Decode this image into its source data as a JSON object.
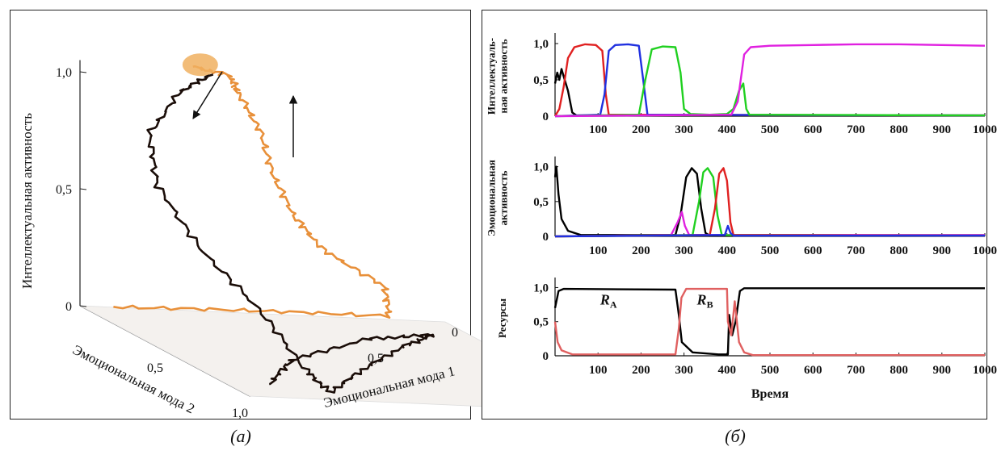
{
  "captions": {
    "a": "(а)",
    "b": "(б)"
  },
  "chart_data": [
    {
      "type": "line",
      "panel": "a",
      "projection": "3d",
      "axes": {
        "z": {
          "label": "Интеллектуальная активность",
          "ticks": [
            "0",
            "0,5",
            "1,0"
          ],
          "range": [
            0,
            1
          ]
        },
        "y": {
          "label": "Эмоциональная мода 2",
          "ticks": [
            "0,5",
            "1,0"
          ],
          "range": [
            0,
            1
          ]
        },
        "x": {
          "label": "Эмоциональная мода 1",
          "ticks": [
            "0",
            "0,5"
          ],
          "range": [
            0,
            1
          ]
        }
      },
      "series": [
        {
          "color": "#e8903a",
          "points": [
            [
              0.05,
              0.08,
              0.03
            ],
            [
              0.45,
              0.05,
              0.03
            ],
            [
              0.8,
              0.1,
              0.05
            ],
            [
              0.78,
              0.12,
              0.18
            ],
            [
              0.62,
              0.1,
              0.32
            ],
            [
              0.55,
              0.08,
              0.45
            ],
            [
              0.5,
              0.06,
              0.62
            ],
            [
              0.47,
              0.05,
              0.8
            ],
            [
              0.42,
              0.03,
              0.95
            ],
            [
              0.4,
              0.02,
              1.02
            ],
            [
              0.3,
              0.02,
              1.05
            ]
          ]
        },
        {
          "color": "#1a0d08",
          "points": [
            [
              0.35,
              0.02,
              1.02
            ],
            [
              0.25,
              0.05,
              0.95
            ],
            [
              0.12,
              0.15,
              0.8
            ],
            [
              0.05,
              0.35,
              0.65
            ],
            [
              0.05,
              0.6,
              0.48
            ],
            [
              0.12,
              0.8,
              0.3
            ],
            [
              0.18,
              0.95,
              0.1
            ],
            [
              0.22,
              1.0,
              0.03
            ],
            [
              0.45,
              0.7,
              0.03
            ],
            [
              0.7,
              0.4,
              0.03
            ],
            [
              0.85,
              0.25,
              0.03
            ],
            [
              0.65,
              0.3,
              0.02
            ],
            [
              0.3,
              0.6,
              0.02
            ],
            [
              0.1,
              0.9,
              0.02
            ]
          ]
        }
      ],
      "annotations": [
        "arrow-down",
        "arrow-up"
      ]
    },
    {
      "type": "line",
      "panel": "b-top",
      "ylabel": [
        "Интеллектуаль-",
        "ная активность"
      ],
      "xlim": [
        0,
        1000
      ],
      "ylim": [
        0,
        1.1
      ],
      "xticks": [
        "100",
        "200",
        "300",
        "400",
        "500",
        "600",
        "700",
        "800",
        "900",
        "1000"
      ],
      "yticks": [
        "0",
        "0,5",
        "1,0"
      ],
      "series": [
        {
          "color": "#000000",
          "points": [
            [
              0,
              0.45
            ],
            [
              5,
              0.6
            ],
            [
              10,
              0.5
            ],
            [
              15,
              0.65
            ],
            [
              20,
              0.55
            ],
            [
              30,
              0.35
            ],
            [
              40,
              0.05
            ],
            [
              50,
              0.01
            ],
            [
              1000,
              0.01
            ]
          ]
        },
        {
          "color": "#e02020",
          "points": [
            [
              0,
              0
            ],
            [
              10,
              0.1
            ],
            [
              20,
              0.4
            ],
            [
              30,
              0.8
            ],
            [
              45,
              0.95
            ],
            [
              70,
              0.99
            ],
            [
              95,
              0.98
            ],
            [
              110,
              0.9
            ],
            [
              118,
              0.3
            ],
            [
              125,
              0.02
            ],
            [
              1000,
              0.01
            ]
          ]
        },
        {
          "color": "#2030e0",
          "points": [
            [
              0,
              0
            ],
            [
              105,
              0.02
            ],
            [
              115,
              0.3
            ],
            [
              125,
              0.9
            ],
            [
              140,
              0.98
            ],
            [
              170,
              0.99
            ],
            [
              195,
              0.97
            ],
            [
              205,
              0.5
            ],
            [
              215,
              0.02
            ],
            [
              1000,
              0.01
            ]
          ]
        },
        {
          "color": "#20d020",
          "points": [
            [
              0,
              0
            ],
            [
              195,
              0.02
            ],
            [
              210,
              0.5
            ],
            [
              225,
              0.92
            ],
            [
              250,
              0.96
            ],
            [
              280,
              0.95
            ],
            [
              292,
              0.6
            ],
            [
              300,
              0.1
            ],
            [
              315,
              0.03
            ],
            [
              360,
              0.02
            ],
            [
              400,
              0.03
            ],
            [
              415,
              0.1
            ],
            [
              428,
              0.35
            ],
            [
              438,
              0.45
            ],
            [
              445,
              0.1
            ],
            [
              452,
              0.02
            ],
            [
              1000,
              0.01
            ]
          ]
        },
        {
          "color": "#e020e0",
          "points": [
            [
              0,
              0
            ],
            [
              410,
              0.02
            ],
            [
              425,
              0.2
            ],
            [
              440,
              0.85
            ],
            [
              455,
              0.95
            ],
            [
              500,
              0.97
            ],
            [
              600,
              0.98
            ],
            [
              700,
              0.99
            ],
            [
              800,
              0.99
            ],
            [
              900,
              0.98
            ],
            [
              1000,
              0.97
            ]
          ]
        }
      ]
    },
    {
      "type": "line",
      "panel": "b-middle",
      "ylabel": [
        "Эмоциональная",
        "активность"
      ],
      "xlim": [
        0,
        1000
      ],
      "ylim": [
        0,
        1.1
      ],
      "xticks": [
        "100",
        "200",
        "300",
        "400",
        "500",
        "600",
        "700",
        "800",
        "900",
        "1000"
      ],
      "yticks": [
        "0",
        "0,5",
        "1,0"
      ],
      "series": [
        {
          "color": "#000000",
          "points": [
            [
              0,
              0.85
            ],
            [
              3,
              1.0
            ],
            [
              8,
              0.6
            ],
            [
              15,
              0.25
            ],
            [
              30,
              0.08
            ],
            [
              60,
              0.02
            ],
            [
              280,
              0.02
            ],
            [
              292,
              0.3
            ],
            [
              305,
              0.85
            ],
            [
              318,
              0.98
            ],
            [
              330,
              0.9
            ],
            [
              340,
              0.4
            ],
            [
              350,
              0.05
            ],
            [
              360,
              0.01
            ],
            [
              1000,
              0.01
            ]
          ]
        },
        {
          "color": "#e020e0",
          "points": [
            [
              0,
              0
            ],
            [
              270,
              0.02
            ],
            [
              285,
              0.2
            ],
            [
              295,
              0.35
            ],
            [
              302,
              0.15
            ],
            [
              312,
              0.02
            ],
            [
              1000,
              0.02
            ]
          ]
        },
        {
          "color": "#20d020",
          "points": [
            [
              0,
              0
            ],
            [
              320,
              0.02
            ],
            [
              335,
              0.5
            ],
            [
              345,
              0.92
            ],
            [
              355,
              0.98
            ],
            [
              368,
              0.85
            ],
            [
              378,
              0.3
            ],
            [
              388,
              0.02
            ],
            [
              1000,
              0.01
            ]
          ]
        },
        {
          "color": "#e02020",
          "points": [
            [
              0,
              0
            ],
            [
              360,
              0.02
            ],
            [
              372,
              0.4
            ],
            [
              382,
              0.9
            ],
            [
              392,
              0.98
            ],
            [
              400,
              0.8
            ],
            [
              408,
              0.2
            ],
            [
              415,
              0.02
            ],
            [
              1000,
              0.01
            ]
          ]
        },
        {
          "color": "#2030e0",
          "points": [
            [
              0,
              0
            ],
            [
              395,
              0.02
            ],
            [
              402,
              0.15
            ],
            [
              408,
              0.05
            ],
            [
              415,
              0.01
            ],
            [
              1000,
              0.01
            ]
          ]
        }
      ]
    },
    {
      "type": "line",
      "panel": "b-bottom",
      "ylabel": [
        "Ресурсы"
      ],
      "xlabel": "Время",
      "xlim": [
        0,
        1000
      ],
      "ylim": [
        0,
        1.1
      ],
      "xticks": [
        "100",
        "200",
        "300",
        "400",
        "500",
        "600",
        "700",
        "800",
        "900",
        "1000"
      ],
      "yticks": [
        "0",
        "0,5",
        "1,0"
      ],
      "annotations": [
        {
          "text": "R",
          "sub": "A",
          "x": 105,
          "y": 0.8
        },
        {
          "text": "R",
          "sub": "B",
          "x": 330,
          "y": 0.8
        }
      ],
      "series": [
        {
          "color": "#000000",
          "points": [
            [
              0,
              0.7
            ],
            [
              8,
              0.95
            ],
            [
              20,
              0.98
            ],
            [
              280,
              0.97
            ],
            [
              288,
              0.6
            ],
            [
              295,
              0.2
            ],
            [
              320,
              0.05
            ],
            [
              380,
              0.02
            ],
            [
              402,
              0.02
            ],
            [
              405,
              0.6
            ],
            [
              412,
              0.3
            ],
            [
              420,
              0.5
            ],
            [
              430,
              0.95
            ],
            [
              440,
              0.99
            ],
            [
              1000,
              0.99
            ]
          ]
        },
        {
          "color": "#e06060",
          "points": [
            [
              0,
              0.5
            ],
            [
              6,
              0.2
            ],
            [
              15,
              0.08
            ],
            [
              40,
              0.02
            ],
            [
              280,
              0.02
            ],
            [
              288,
              0.4
            ],
            [
              294,
              0.85
            ],
            [
              305,
              0.98
            ],
            [
              400,
              0.98
            ],
            [
              402,
              0.5
            ],
            [
              410,
              0.3
            ],
            [
              418,
              0.8
            ],
            [
              428,
              0.2
            ],
            [
              440,
              0.05
            ],
            [
              460,
              0.01
            ],
            [
              1000,
              0.01
            ]
          ]
        }
      ]
    }
  ]
}
